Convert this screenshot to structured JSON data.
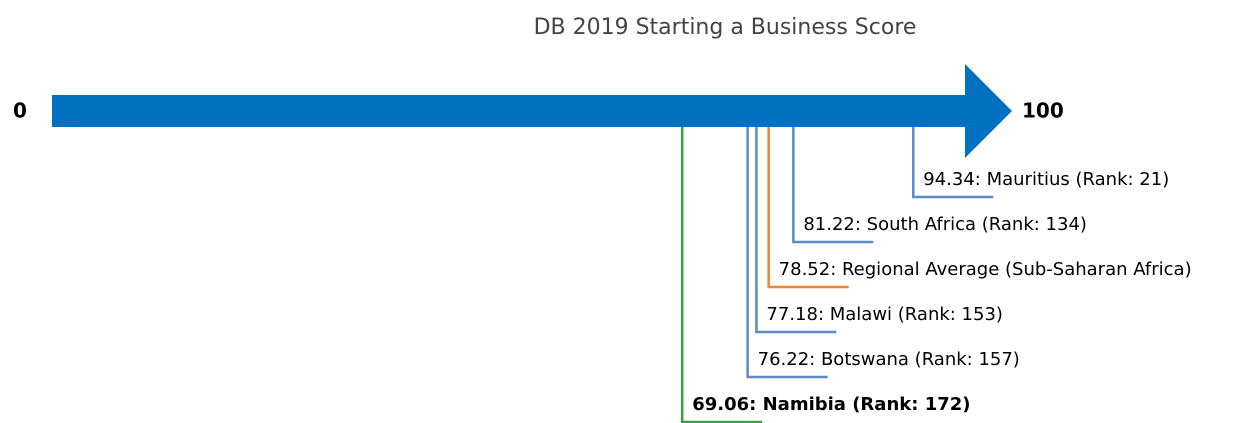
{
  "chart_data": {
    "type": "arrow-scale",
    "title": "DB 2019 Starting a Business Score",
    "xlim": [
      0,
      100
    ],
    "xticks": [
      0,
      100
    ],
    "arrow_color": "#0070c0",
    "values": [
      69.06,
      76.22,
      77.18,
      78.52,
      81.22,
      94.34
    ],
    "value_labels": [
      "69.06: Namibia (Rank: 172)",
      "76.22: Botswana (Rank: 157)",
      "77.18: Malawi (Rank: 153)",
      "78.52: Regional Average (Sub-Saharan Africa)",
      "81.22: South Africa (Rank: 134)",
      "94.34: Mauritius (Rank: 21)"
    ],
    "colors": [
      "#3a9e4a",
      "#5b8ac6",
      "#5b8ac6",
      "#f0862d",
      "#5b8ac6",
      "#5b8ac6"
    ],
    "bold": [
      true,
      false,
      false,
      false,
      false,
      false
    ]
  }
}
